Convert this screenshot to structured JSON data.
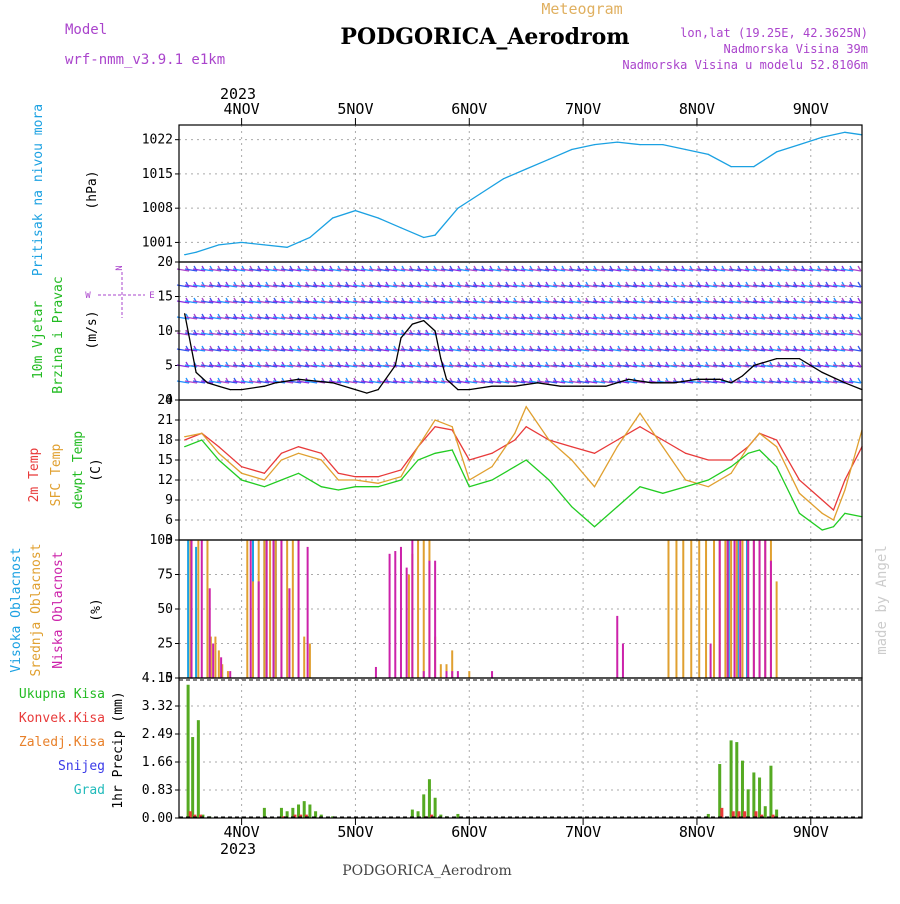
{
  "header": {
    "title": "PODGORICA_Aerodrom",
    "subtitle": "Meteogram",
    "model_label": "Model",
    "model_name": "wrf-nmm_v3.9.1 e1km",
    "lonlat": "lon,lat (19.25E, 42.3625N)",
    "elevation": "Nadmorska Visina 39m",
    "model_elevation": "Nadmorska Visina u modelu 52.8106m",
    "year": "2023",
    "footer": "PODGORICA_Aerodrom",
    "credit": "made by Angel"
  },
  "time_axis": {
    "labels": [
      "4NOV",
      "5NOV",
      "6NOV",
      "7NOV",
      "8NOV",
      "9NOV"
    ],
    "start": -0.55,
    "end": 5.45
  },
  "colors": {
    "pressure": "#1ba1e2",
    "t2m": "#e83a3a",
    "sfc": "#e0a030",
    "dew": "#22cc22",
    "wind_speed": "#000000",
    "cloud_high": "#1ba1e2",
    "cloud_mid": "#e0a030",
    "cloud_low": "#cc22aa",
    "precip_total": "#55aa22",
    "precip_conv": "#e83a3a",
    "ylabel_cyan": "#1ba1e2",
    "ylabel_green": "#22bb22",
    "ylabel_purple": "#aa44cc"
  },
  "chart_data": [
    {
      "type": "line",
      "panel": "pressure",
      "ylabel_left": "Pritisak na nivou mora",
      "ylabel_unit": "(hPa)",
      "ylim": [
        997,
        1025
      ],
      "yticks": [
        1001,
        1008,
        1015,
        1022
      ],
      "grid": true,
      "series": [
        {
          "name": "Pritisak",
          "x": [
            -0.5,
            -0.4,
            -0.2,
            0,
            0.2,
            0.4,
            0.6,
            0.8,
            1.0,
            1.2,
            1.4,
            1.6,
            1.7,
            1.9,
            2.1,
            2.3,
            2.5,
            2.7,
            2.9,
            3.1,
            3.3,
            3.5,
            3.7,
            3.9,
            4.1,
            4.3,
            4.5,
            4.7,
            4.9,
            5.1,
            5.3,
            5.45
          ],
          "values": [
            998.5,
            999,
            1000.5,
            1001,
            1000.5,
            1000,
            1002,
            1006,
            1007.5,
            1006,
            1004,
            1002,
            1002.5,
            1008,
            1011,
            1014,
            1016,
            1018,
            1020,
            1021,
            1021.5,
            1021,
            1021,
            1020,
            1019,
            1016.5,
            1016.5,
            1019.5,
            1021,
            1022.5,
            1023.5,
            1023
          ]
        }
      ]
    },
    {
      "type": "line",
      "panel": "wind",
      "ylabel_left": "10m Vjetar",
      "ylabel_left2": "Brzina i Pravac",
      "ylabel_unit": "(m/s)",
      "ylim": [
        0,
        20
      ],
      "yticks": [
        0,
        5,
        10,
        15,
        20
      ],
      "grid": true,
      "compass": "N",
      "series": [
        {
          "name": "Brzina",
          "x": [
            -0.5,
            -0.4,
            -0.3,
            -0.2,
            -0.1,
            0,
            0.2,
            0.3,
            0.5,
            0.8,
            1.0,
            1.1,
            1.2,
            1.35,
            1.4,
            1.5,
            1.6,
            1.7,
            1.75,
            1.8,
            1.9,
            2.0,
            2.2,
            2.4,
            2.6,
            2.8,
            3.0,
            3.2,
            3.4,
            3.6,
            3.8,
            4.0,
            4.2,
            4.3,
            4.4,
            4.5,
            4.7,
            4.9,
            5.1,
            5.3,
            5.45
          ],
          "values": [
            12.5,
            4,
            2.5,
            2,
            1.5,
            1.5,
            2,
            2.5,
            3,
            2.5,
            1.5,
            1,
            1.5,
            5,
            9,
            11,
            11.5,
            10,
            6,
            3,
            1.5,
            1.5,
            2,
            2,
            2.5,
            2,
            2,
            2,
            3,
            2.5,
            2.5,
            3,
            3,
            2.5,
            3.5,
            5,
            6,
            6,
            4,
            2.5,
            1.5
          ]
        }
      ]
    },
    {
      "type": "line",
      "panel": "temperature",
      "ylabel_left": "2m Temp",
      "ylabel_left2": "SFC Temp",
      "ylabel_left3": "dewpt Temp",
      "ylabel_unit": "(C)",
      "ylim": [
        3,
        24
      ],
      "yticks": [
        3,
        6,
        9,
        12,
        15,
        18,
        21,
        24
      ],
      "grid": true,
      "series": [
        {
          "name": "2m Temp",
          "x": [
            -0.5,
            -0.35,
            -0.2,
            0,
            0.2,
            0.35,
            0.5,
            0.7,
            0.85,
            1.0,
            1.2,
            1.4,
            1.55,
            1.7,
            1.85,
            2.0,
            2.2,
            2.4,
            2.5,
            2.7,
            2.9,
            3.1,
            3.3,
            3.5,
            3.7,
            3.9,
            4.1,
            4.3,
            4.45,
            4.55,
            4.7,
            4.9,
            5.1,
            5.2,
            5.3,
            5.45
          ],
          "values": [
            18,
            19,
            17,
            14,
            13,
            16,
            17,
            16,
            13,
            12.5,
            12.5,
            13.5,
            17,
            20,
            19.5,
            15,
            16,
            18,
            20,
            18,
            17,
            16,
            18,
            20,
            18,
            16,
            15,
            15,
            17,
            19,
            18,
            12,
            9,
            7.5,
            12,
            17
          ]
        },
        {
          "name": "SFC Temp",
          "x": [
            -0.5,
            -0.35,
            -0.2,
            0,
            0.2,
            0.35,
            0.5,
            0.7,
            0.85,
            1.0,
            1.2,
            1.4,
            1.55,
            1.7,
            1.85,
            2.0,
            2.2,
            2.4,
            2.5,
            2.7,
            2.9,
            3.1,
            3.3,
            3.5,
            3.7,
            3.9,
            4.1,
            4.3,
            4.45,
            4.55,
            4.7,
            4.9,
            5.1,
            5.2,
            5.3,
            5.45
          ],
          "values": [
            18.5,
            19,
            16,
            13,
            12,
            15,
            16,
            15,
            12,
            12,
            11.5,
            12.5,
            17,
            21,
            20,
            12,
            14,
            19,
            23,
            18,
            15,
            11,
            17,
            22,
            17,
            12,
            11,
            13,
            17,
            19,
            17,
            10,
            7,
            6,
            10.5,
            19.5
          ]
        },
        {
          "name": "dewpt Temp",
          "x": [
            -0.5,
            -0.35,
            -0.2,
            0,
            0.2,
            0.35,
            0.5,
            0.7,
            0.85,
            1.0,
            1.2,
            1.4,
            1.55,
            1.7,
            1.85,
            2.0,
            2.2,
            2.4,
            2.5,
            2.7,
            2.9,
            3.1,
            3.3,
            3.5,
            3.7,
            3.9,
            4.1,
            4.3,
            4.45,
            4.55,
            4.7,
            4.9,
            5.1,
            5.2,
            5.3,
            5.45
          ],
          "values": [
            17,
            18,
            15,
            12,
            11,
            12,
            13,
            11,
            10.5,
            11,
            11,
            12,
            15,
            16,
            16.5,
            11,
            12,
            14,
            15,
            12,
            8,
            5,
            8,
            11,
            10,
            11,
            12,
            14,
            16,
            16.5,
            14,
            7,
            4.5,
            5,
            7,
            6.5
          ]
        }
      ]
    },
    {
      "type": "bar",
      "panel": "clouds",
      "ylabel_left": "Visoka Oblacnost",
      "ylabel_left2": "Srednja Oblacnost",
      "ylabel_left3": "Niska Oblacnost",
      "ylabel_unit": "(%)",
      "ylim": [
        0,
        100
      ],
      "yticks": [
        0,
        25,
        50,
        75,
        100
      ],
      "grid": true,
      "series": [
        {
          "name": "Visoka Oblacnost",
          "x": [
            -0.47,
            -0.4,
            0.1,
            0.2,
            0.3,
            4.28,
            4.36,
            4.44
          ],
          "values": [
            100,
            95,
            100,
            100,
            100,
            100,
            100,
            100
          ]
        },
        {
          "name": "Srednja Oblacnost",
          "x": [
            -0.45,
            -0.38,
            -0.3,
            -0.27,
            -0.23,
            -0.2,
            -0.17,
            -0.12,
            0.05,
            0.1,
            0.15,
            0.2,
            0.25,
            0.3,
            0.35,
            0.4,
            0.45,
            0.5,
            0.55,
            0.6,
            1.47,
            1.5,
            1.55,
            1.6,
            1.65,
            1.7,
            1.75,
            1.8,
            1.85,
            2.0,
            3.75,
            3.82,
            3.88,
            3.95,
            4.02,
            4.08,
            4.15,
            4.2,
            4.25,
            4.3,
            4.35,
            4.4,
            4.45,
            4.5,
            4.55,
            4.6,
            4.65,
            4.7
          ],
          "values": [
            100,
            100,
            100,
            30,
            30,
            20,
            10,
            5,
            100,
            70,
            100,
            100,
            100,
            100,
            100,
            100,
            100,
            100,
            30,
            25,
            75,
            90,
            100,
            100,
            100,
            30,
            10,
            10,
            20,
            5,
            100,
            100,
            100,
            100,
            100,
            100,
            100,
            100,
            100,
            100,
            100,
            100,
            100,
            100,
            100,
            100,
            100,
            70
          ]
        },
        {
          "name": "Niska Oblacnost",
          "x": [
            -0.44,
            -0.35,
            -0.28,
            -0.25,
            -0.18,
            -0.1,
            0.08,
            0.15,
            0.22,
            0.28,
            0.35,
            0.42,
            0.5,
            0.58,
            1.18,
            1.3,
            1.35,
            1.4,
            1.45,
            1.5,
            1.6,
            1.65,
            1.7,
            1.8,
            1.85,
            1.9,
            2.2,
            3.3,
            3.35,
            4.12,
            4.2,
            4.27,
            4.33,
            4.38,
            4.45,
            4.5,
            4.55,
            4.6,
            4.65
          ],
          "values": [
            100,
            100,
            65,
            25,
            15,
            5,
            100,
            70,
            100,
            100,
            100,
            65,
            100,
            95,
            8,
            90,
            92,
            95,
            80,
            100,
            5,
            85,
            85,
            5,
            5,
            5,
            5,
            45,
            25,
            25,
            100,
            100,
            100,
            100,
            100,
            100,
            100,
            100,
            85
          ]
        }
      ]
    },
    {
      "type": "bar",
      "panel": "precip",
      "ylabel_left": "1hr Precip (mm)",
      "ylim": [
        0,
        4.15
      ],
      "yticks": [
        0,
        0.83,
        1.66,
        2.49,
        3.32,
        4.15
      ],
      "grid": true,
      "legend": [
        "Ukupna Kisa",
        "Konvek.Kisa",
        "Zaledj.Kisa",
        "Snijeg",
        "Grad"
      ],
      "legend_colors": [
        "#22bb22",
        "#e83a3a",
        "#e8802a",
        "#3a3ae8",
        "#22bbbb"
      ],
      "series": [
        {
          "name": "Ukupna Kisa",
          "x": [
            -0.47,
            -0.43,
            -0.38,
            -0.34,
            -0.28,
            0.2,
            0.35,
            0.4,
            0.45,
            0.5,
            0.55,
            0.6,
            0.65,
            0.7,
            0.8,
            1.0,
            1.5,
            1.55,
            1.6,
            1.65,
            1.7,
            1.75,
            1.8,
            1.9,
            2.0,
            4.1,
            4.2,
            4.3,
            4.35,
            4.4,
            4.45,
            4.5,
            4.55,
            4.6,
            4.65,
            4.7
          ],
          "values": [
            3.95,
            2.4,
            2.9,
            0.1,
            0.05,
            0.3,
            0.3,
            0.2,
            0.3,
            0.4,
            0.5,
            0.4,
            0.2,
            0.1,
            0.05,
            0.02,
            0.25,
            0.2,
            0.7,
            1.15,
            0.6,
            0.1,
            0.05,
            0.12,
            0.02,
            0.12,
            1.6,
            2.3,
            2.25,
            1.7,
            0.85,
            1.35,
            1.2,
            0.35,
            1.55,
            0.25
          ]
        },
        {
          "name": "Konvek.Kisa",
          "x": [
            -0.46,
            -0.42,
            -0.37,
            0.36,
            0.46,
            0.51,
            0.56,
            1.61,
            1.66,
            4.21,
            4.31,
            4.36,
            4.41,
            4.51,
            4.56,
            4.66
          ],
          "values": [
            0.2,
            0.1,
            0.1,
            0.05,
            0.1,
            0.1,
            0.1,
            0.05,
            0.1,
            0.3,
            0.2,
            0.2,
            0.2,
            0.2,
            0.1,
            0.1
          ]
        }
      ]
    }
  ]
}
